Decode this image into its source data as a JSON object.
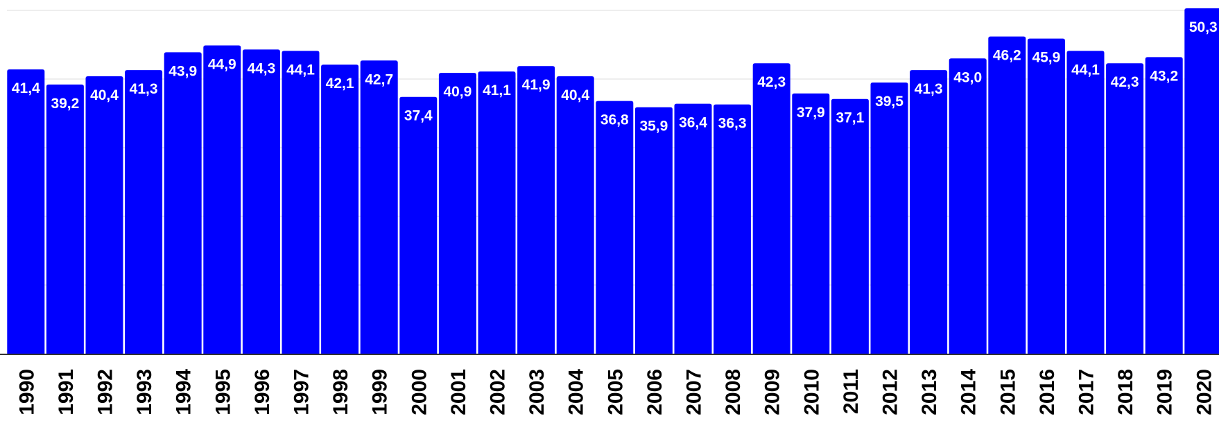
{
  "chart_data": {
    "type": "bar",
    "categories": [
      "1990",
      "1991",
      "1992",
      "1993",
      "1994",
      "1995",
      "1996",
      "1997",
      "1998",
      "1999",
      "2000",
      "2001",
      "2002",
      "2003",
      "2004",
      "2005",
      "2006",
      "2007",
      "2008",
      "2009",
      "2010",
      "2011",
      "2012",
      "2013",
      "2014",
      "2015",
      "2016",
      "2017",
      "2018",
      "2019",
      "2020"
    ],
    "values": [
      41.4,
      39.2,
      40.4,
      41.3,
      43.9,
      44.9,
      44.3,
      44.1,
      42.1,
      42.7,
      37.4,
      40.9,
      41.1,
      41.9,
      40.4,
      36.8,
      35.9,
      36.4,
      36.3,
      42.3,
      37.9,
      37.1,
      39.5,
      41.3,
      43.0,
      46.2,
      45.9,
      44.1,
      42.3,
      43.2,
      50.3
    ],
    "value_labels": [
      "41,4",
      "39,2",
      "40,4",
      "41,3",
      "43,9",
      "44,9",
      "44,3",
      "44,1",
      "42,1",
      "42,7",
      "37,4",
      "40,9",
      "41,1",
      "41,9",
      "40,4",
      "36,8",
      "35,9",
      "36,4",
      "36,3",
      "42,3",
      "37,9",
      "37,1",
      "39,5",
      "41,3",
      "43,0",
      "46,2",
      "45,9",
      "44,1",
      "42,3",
      "43,2",
      "50,3"
    ],
    "title": "",
    "xlabel": "",
    "ylabel": "",
    "ylim": [
      0,
      50
    ],
    "grid": true,
    "legend": "none",
    "bar_color": "#0000ff",
    "label_color": "#ffffff"
  }
}
